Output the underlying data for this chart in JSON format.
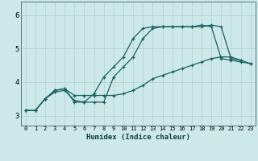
{
  "title": "",
  "xlabel": "Humidex (Indice chaleur)",
  "ylabel": "",
  "bg_color": "#cce8e8",
  "line_color": "#1a6060",
  "grid_color": "#b0d0d0",
  "xlim": [
    -0.5,
    23.5
  ],
  "ylim": [
    2.7,
    6.4
  ],
  "yticks": [
    3,
    4,
    5,
    6
  ],
  "xticks": [
    0,
    1,
    2,
    3,
    4,
    5,
    6,
    7,
    8,
    9,
    10,
    11,
    12,
    13,
    14,
    15,
    16,
    17,
    18,
    19,
    20,
    21,
    22,
    23
  ],
  "series1_x": [
    0,
    1,
    2,
    3,
    4,
    5,
    6,
    7,
    8,
    9,
    10,
    11,
    12,
    13,
    14,
    15,
    16,
    17,
    18,
    19,
    20,
    21,
    22
  ],
  "series1_y": [
    3.15,
    3.15,
    3.5,
    3.7,
    3.75,
    3.45,
    3.4,
    3.4,
    3.4,
    4.15,
    4.45,
    4.75,
    5.3,
    5.6,
    5.65,
    5.65,
    5.65,
    5.65,
    5.65,
    5.7,
    5.65,
    4.7,
    4.65
  ],
  "series2_x": [
    0,
    1,
    2,
    3,
    4,
    5,
    6,
    7,
    8,
    9,
    10,
    11,
    12,
    13,
    14,
    15,
    16,
    17,
    18,
    19,
    20,
    21,
    22,
    23
  ],
  "series2_y": [
    3.15,
    3.15,
    3.5,
    3.75,
    3.8,
    3.4,
    3.4,
    3.65,
    4.15,
    4.45,
    4.75,
    5.3,
    5.6,
    5.65,
    5.65,
    5.65,
    5.65,
    5.65,
    5.7,
    5.65,
    4.7,
    4.65,
    4.6,
    4.55
  ],
  "series3_x": [
    0,
    1,
    2,
    3,
    4,
    5,
    6,
    7,
    8,
    9,
    10,
    11,
    12,
    13,
    14,
    15,
    16,
    17,
    18,
    19,
    20,
    21,
    22,
    23
  ],
  "series3_y": [
    3.15,
    3.15,
    3.5,
    3.75,
    3.8,
    3.6,
    3.6,
    3.6,
    3.6,
    3.6,
    3.65,
    3.75,
    3.9,
    4.1,
    4.2,
    4.3,
    4.4,
    4.5,
    4.6,
    4.7,
    4.75,
    4.75,
    4.65,
    4.55
  ]
}
